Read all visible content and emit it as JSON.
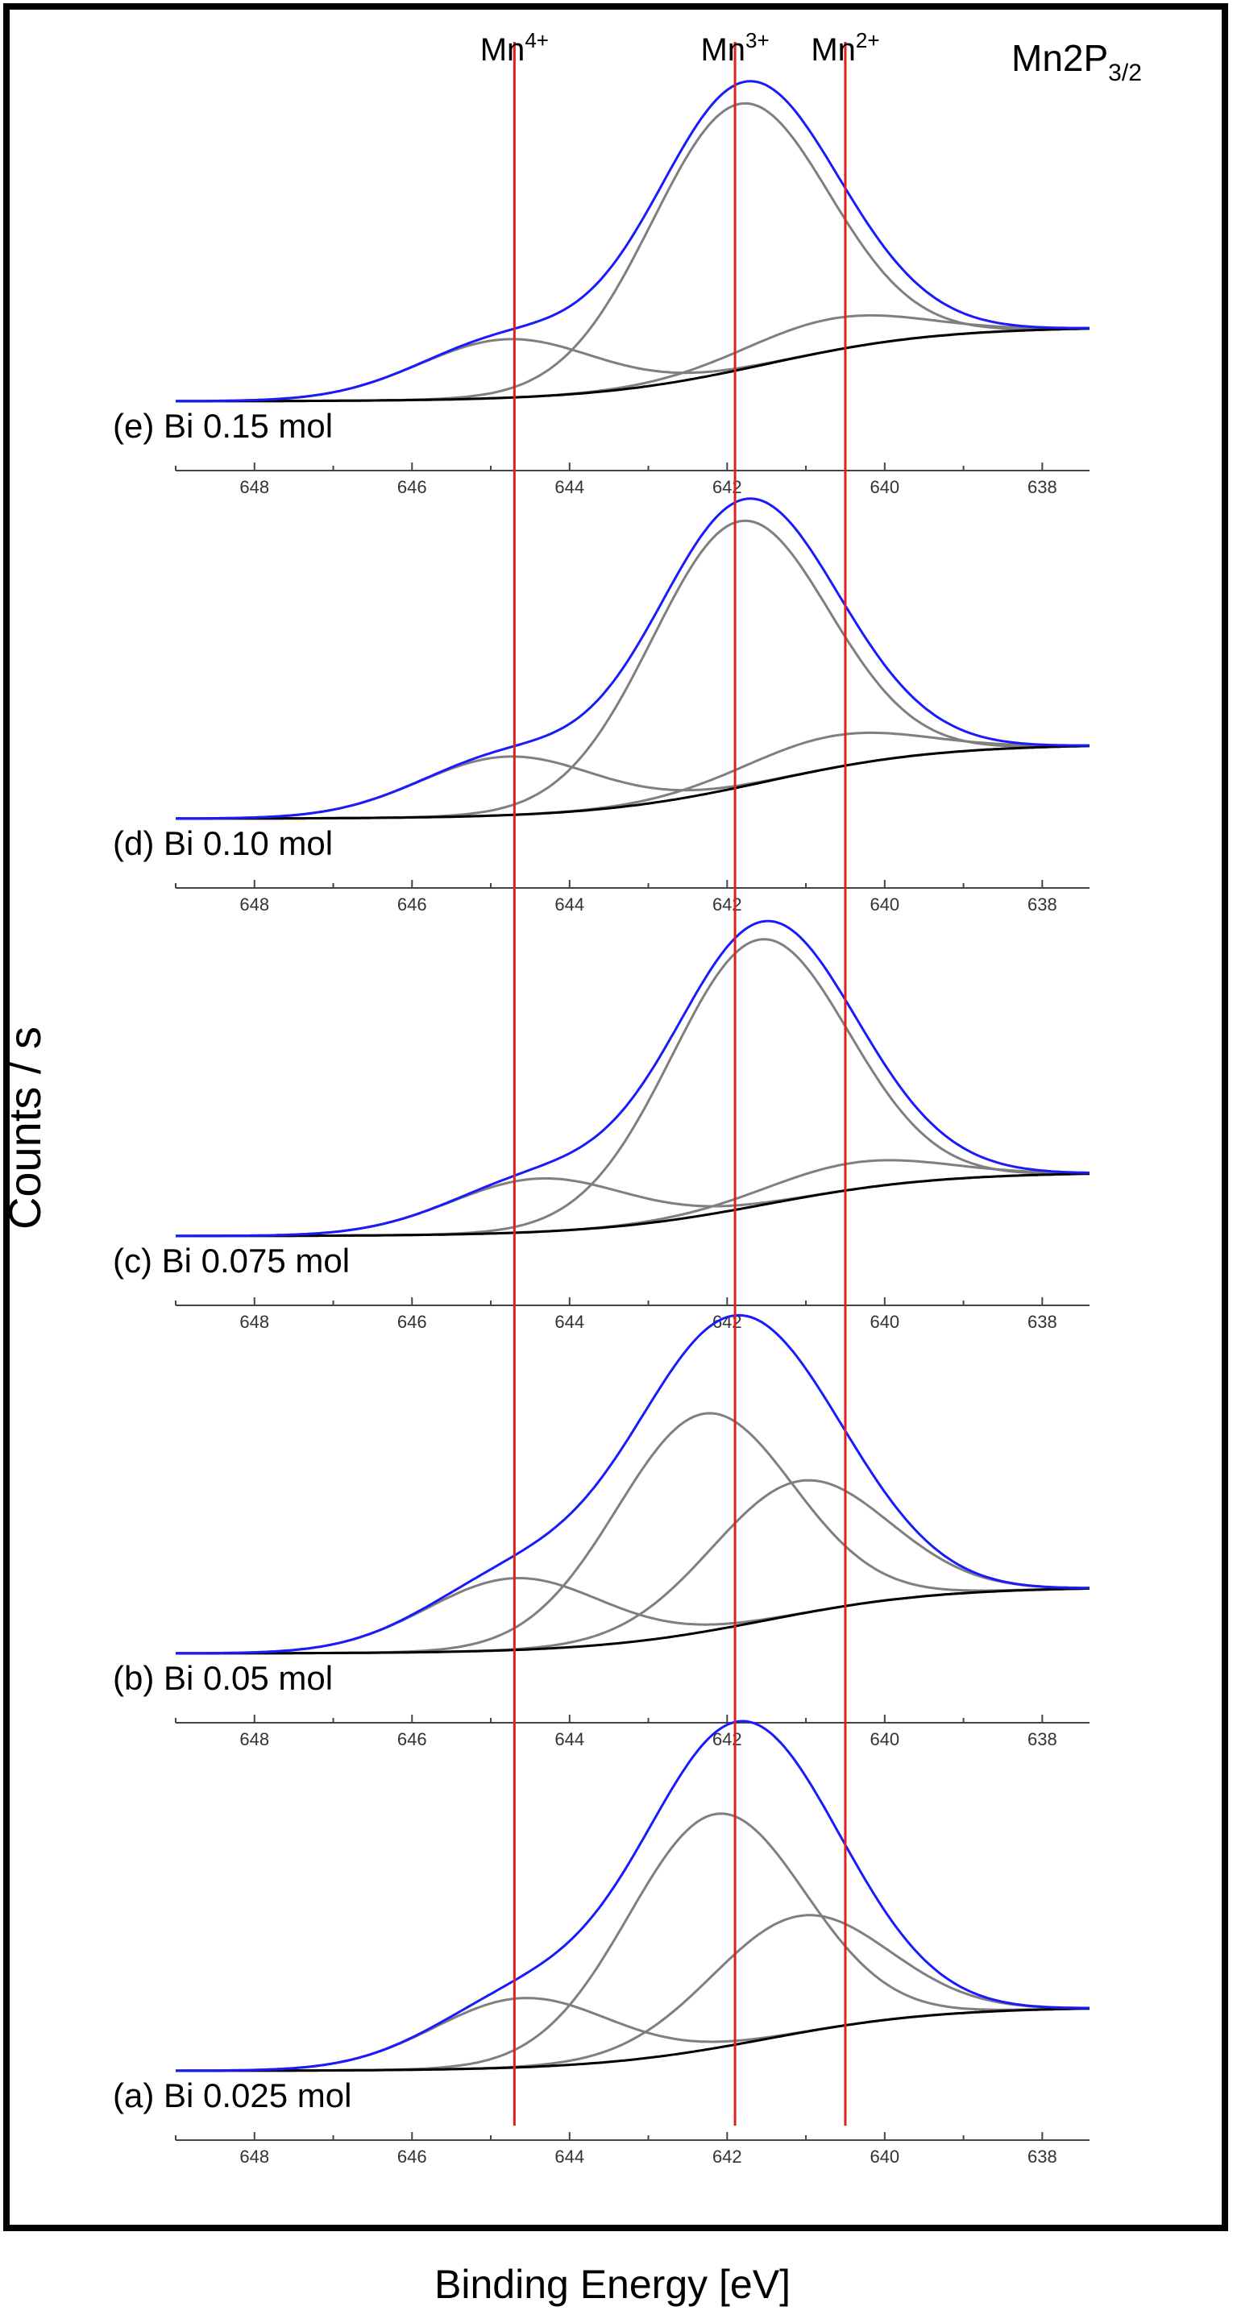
{
  "figure": {
    "ylabel": "Counts / s",
    "xlabel": "Binding Energy [eV]",
    "corner_label": {
      "base": "Mn2P",
      "sub": "3/2"
    }
  },
  "colors": {
    "envelope": "#1a1aff",
    "component": "#7f7f7f",
    "background": "#000000",
    "reference_line": "#e0201a",
    "frame": "#000000",
    "tick_text": "#333333"
  },
  "reference_lines": [
    {
      "ion": "Mn",
      "charge": "4+",
      "energy": 644.7
    },
    {
      "ion": "Mn",
      "charge": "3+",
      "energy": 641.9
    },
    {
      "ion": "Mn",
      "charge": "2+",
      "energy": 640.5
    }
  ],
  "chart_data": [
    {
      "type": "line",
      "label": "(e) Bi 0.15 mol",
      "xlim": [
        649,
        637.4
      ],
      "xticks": [
        648,
        646,
        644,
        642,
        640,
        638
      ],
      "peaks": [
        {
          "center": 641.85,
          "height": 1.0
        },
        {
          "center": 644.8,
          "height": 0.22
        },
        {
          "center": 640.7,
          "height": 0.12
        }
      ],
      "background_step": 0.28
    },
    {
      "type": "line",
      "label": "(d) Bi 0.10 mol",
      "xlim": [
        649,
        637.4
      ],
      "xticks": [
        648,
        646,
        644,
        642,
        640,
        638
      ],
      "peaks": [
        {
          "center": 641.85,
          "height": 1.0
        },
        {
          "center": 644.8,
          "height": 0.22
        },
        {
          "center": 640.7,
          "height": 0.12
        }
      ],
      "background_step": 0.28
    },
    {
      "type": "line",
      "label": "(c) Bi 0.075 mol",
      "xlim": [
        649,
        637.4
      ],
      "xticks": [
        648,
        646,
        644,
        642,
        640,
        638
      ],
      "peaks": [
        {
          "center": 641.6,
          "height": 1.0
        },
        {
          "center": 644.4,
          "height": 0.2
        },
        {
          "center": 640.4,
          "height": 0.1
        }
      ],
      "background_step": 0.24
    },
    {
      "type": "line",
      "label": "(b) Bi 0.05 mol",
      "xlim": [
        649,
        637.4
      ],
      "xticks": [
        648,
        646,
        644,
        642,
        640,
        638
      ],
      "peaks": [
        {
          "center": 642.3,
          "height": 0.82
        },
        {
          "center": 644.7,
          "height": 0.27
        },
        {
          "center": 641.1,
          "height": 0.5
        }
      ],
      "background_step": 0.25
    },
    {
      "type": "line",
      "label": "(a) Bi 0.025 mol",
      "xlim": [
        649,
        637.4
      ],
      "xticks": [
        648,
        646,
        644,
        642,
        640,
        638
      ],
      "peaks": [
        {
          "center": 642.15,
          "height": 0.88
        },
        {
          "center": 644.6,
          "height": 0.26
        },
        {
          "center": 641.1,
          "height": 0.44
        }
      ],
      "background_step": 0.24
    }
  ]
}
